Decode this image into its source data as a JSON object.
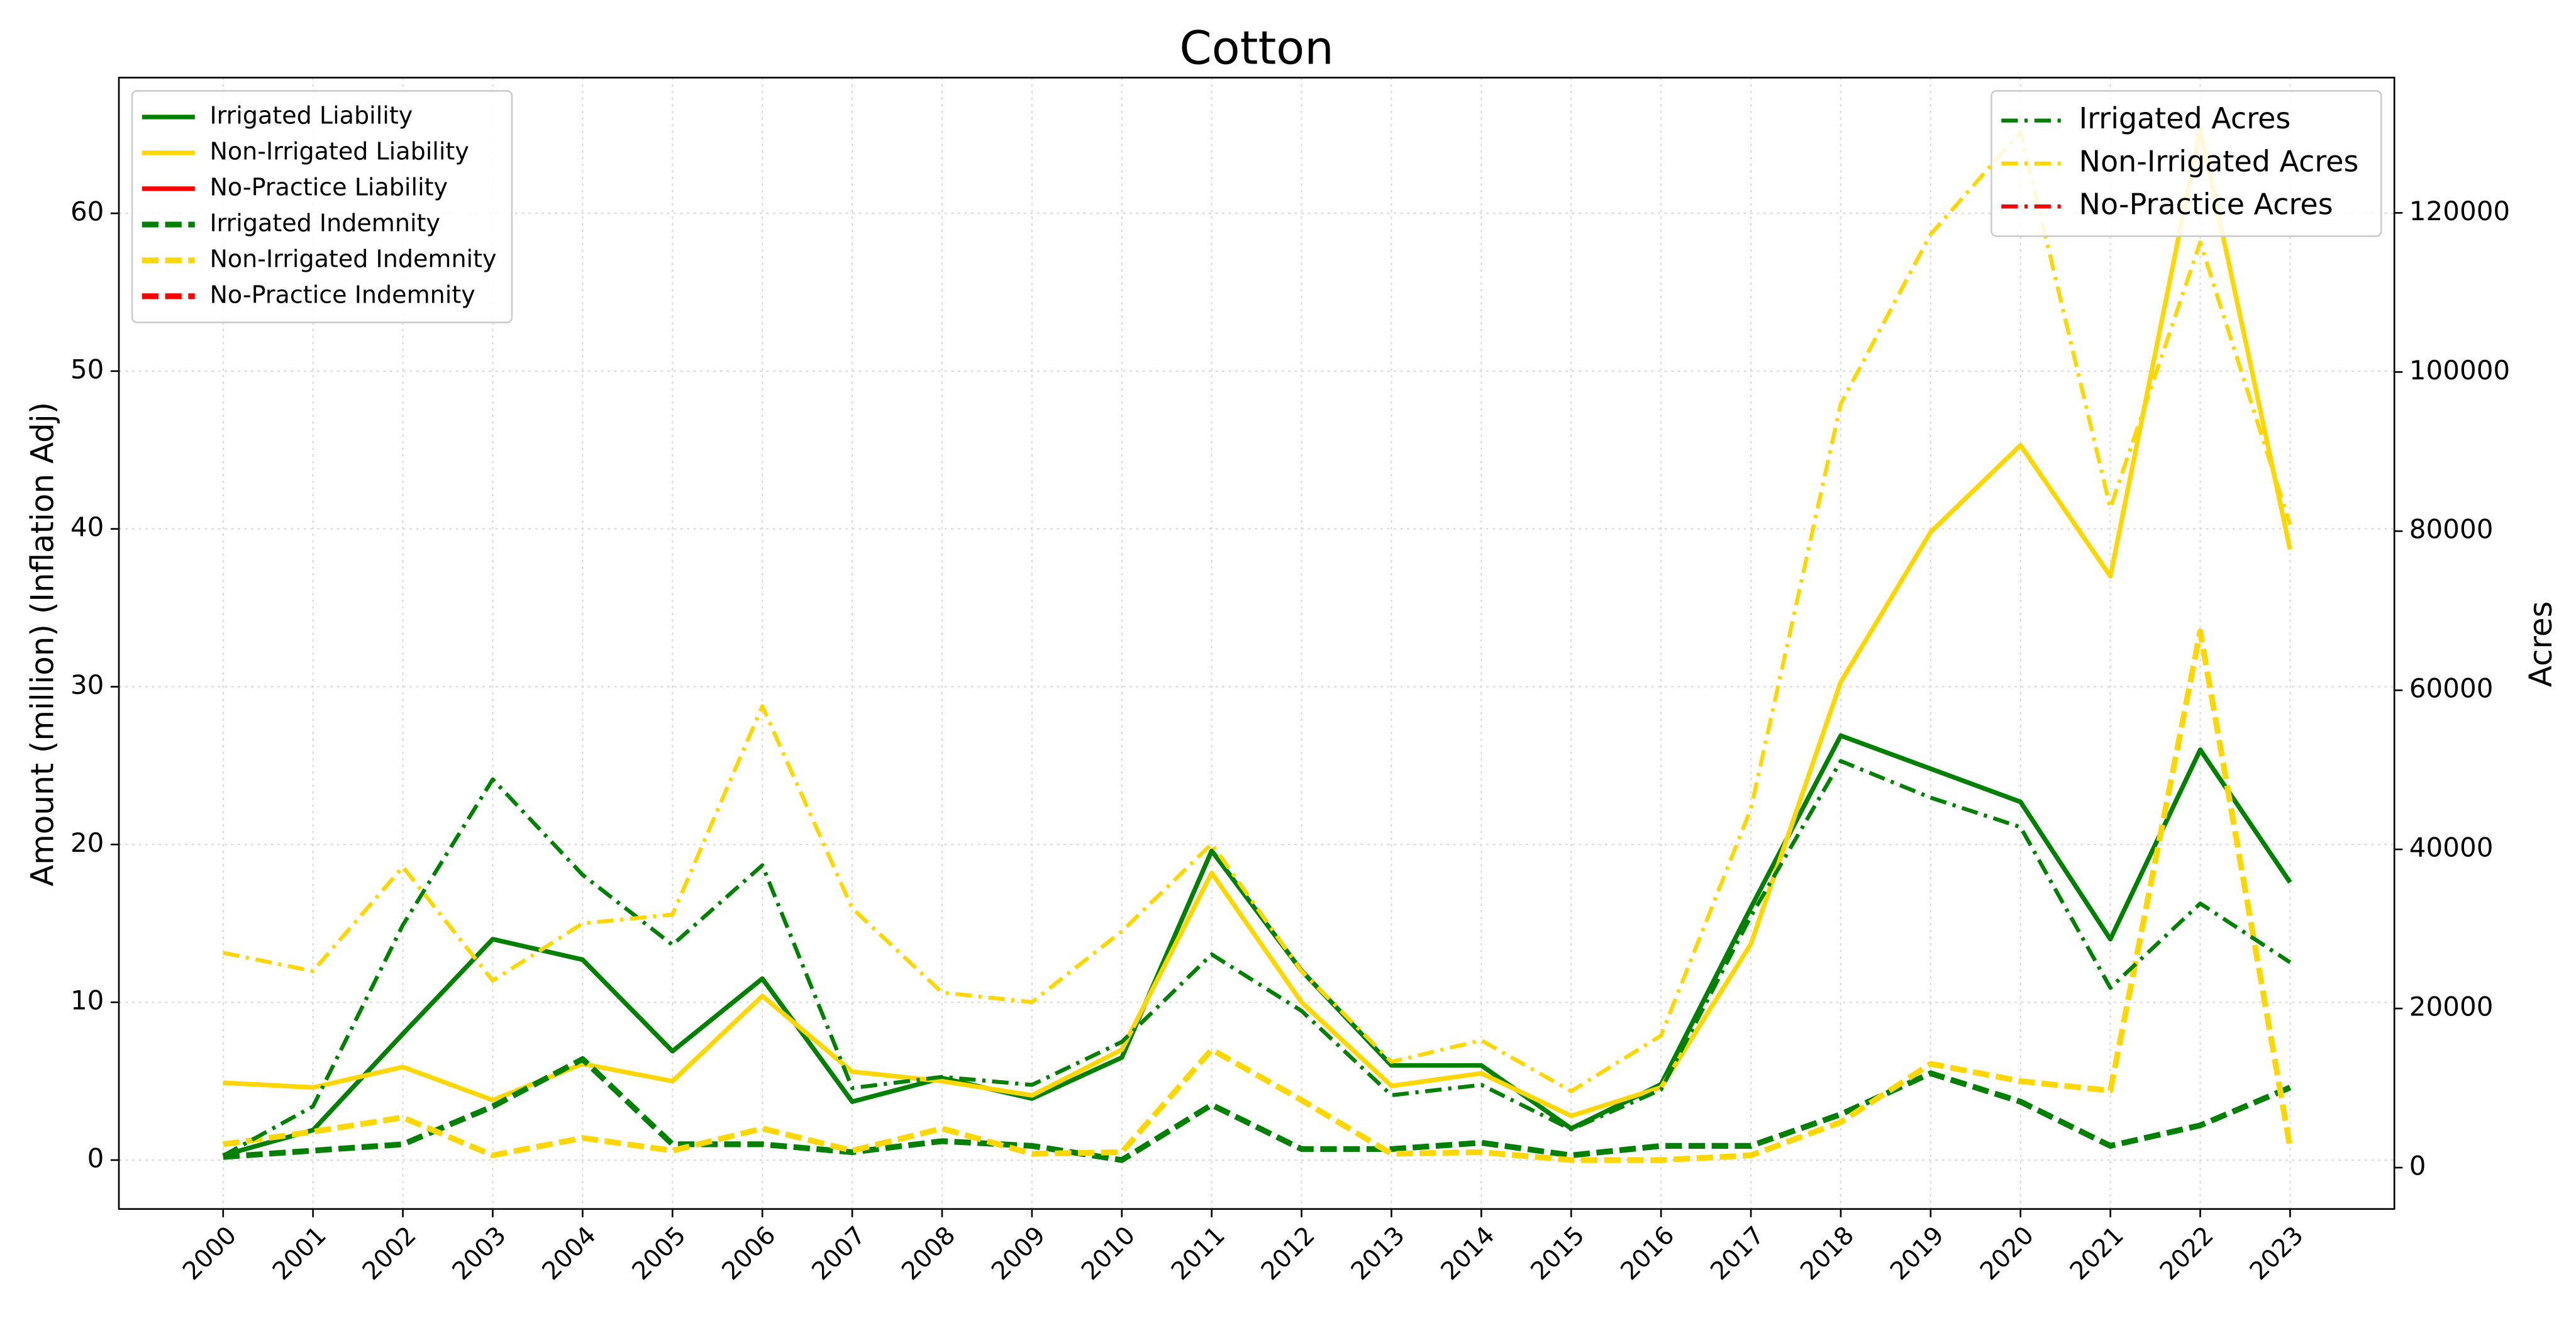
{
  "chart_data": {
    "type": "line",
    "title": "Cotton",
    "ylabel": "Amount (million) (Inflation Adj)",
    "y2label": "Acres",
    "x": [
      2000,
      2001,
      2002,
      2003,
      2004,
      2005,
      2006,
      2007,
      2008,
      2009,
      2010,
      2011,
      2012,
      2013,
      2014,
      2015,
      2016,
      2017,
      2018,
      2019,
      2020,
      2021,
      2022,
      2023
    ],
    "xticks": [
      2000,
      2001,
      2002,
      2003,
      2004,
      2005,
      2006,
      2007,
      2008,
      2009,
      2010,
      2011,
      2012,
      2013,
      2014,
      2015,
      2016,
      2017,
      2018,
      2019,
      2020,
      2021,
      2022,
      2023
    ],
    "xlim": [
      1998.84,
      2024.16
    ],
    "ylim": [
      -3.1,
      68.6
    ],
    "yticks": [
      0,
      10,
      20,
      30,
      40,
      50,
      60
    ],
    "y2lim": [
      -5200,
      137000
    ],
    "y2ticks": [
      0,
      20000,
      40000,
      60000,
      80000,
      100000,
      120000
    ],
    "grid": true,
    "legend": "upper left",
    "legend2": "upper right",
    "series": [
      {
        "name": "Irrigated Liability",
        "color": "#008000",
        "style": "solid",
        "values": [
          0.3,
          1.9,
          8.0,
          14.0,
          12.7,
          6.9,
          11.5,
          3.7,
          5.2,
          3.9,
          6.5,
          19.6,
          12.0,
          6.0,
          6.0,
          2.0,
          4.8,
          16.0,
          26.9,
          24.8,
          22.7,
          14.0,
          26.0,
          17.6
        ]
      },
      {
        "name": "Non-Irrigated Liability",
        "color": "#ffd700",
        "style": "solid",
        "values": [
          4.9,
          4.6,
          5.9,
          3.8,
          6.1,
          5.0,
          10.4,
          5.6,
          5.0,
          4.1,
          7.0,
          18.2,
          10.0,
          4.7,
          5.5,
          2.8,
          4.6,
          13.7,
          30.3,
          39.8,
          45.3,
          37.0,
          65.3,
          38.7
        ]
      },
      {
        "name": "No-Practice Liability",
        "color": "#ff0000",
        "style": "solid",
        "values": [
          null,
          null,
          null,
          null,
          null,
          null,
          null,
          null,
          null,
          null,
          null,
          null,
          null,
          null,
          null,
          null,
          null,
          null,
          null,
          null,
          null,
          null,
          null,
          null
        ]
      },
      {
        "name": "Irrigated Indemnity",
        "color": "#008000",
        "style": "dashed",
        "values": [
          0.2,
          0.6,
          1.0,
          3.4,
          6.4,
          1.0,
          1.0,
          0.5,
          1.2,
          0.9,
          0.0,
          3.5,
          0.7,
          0.7,
          1.1,
          0.3,
          0.9,
          0.9,
          2.9,
          5.5,
          3.7,
          0.9,
          2.2,
          4.6
        ]
      },
      {
        "name": "Non-Irrigated Indemnity",
        "color": "#ffd700",
        "style": "dashed",
        "values": [
          1.0,
          1.8,
          2.7,
          0.3,
          1.4,
          0.6,
          2.0,
          0.6,
          2.0,
          0.4,
          0.5,
          7.0,
          3.8,
          0.4,
          0.5,
          0.0,
          0.0,
          0.3,
          2.4,
          6.1,
          5.0,
          4.4,
          33.5,
          0.8
        ]
      },
      {
        "name": "No-Practice Indemnity",
        "color": "#ff0000",
        "style": "dashed",
        "values": [
          null,
          null,
          null,
          null,
          null,
          null,
          null,
          null,
          null,
          null,
          null,
          null,
          null,
          null,
          null,
          null,
          null,
          null,
          null,
          null,
          null,
          null,
          null,
          null
        ]
      },
      {
        "name": "Irrigated Acres",
        "color": "#008000",
        "style": "dashdot",
        "axis": "y2",
        "values": [
          1500,
          7700,
          30500,
          48800,
          36800,
          28000,
          38000,
          10000,
          11400,
          10400,
          15800,
          26800,
          19700,
          9100,
          10400,
          4800,
          9800,
          31600,
          51100,
          46500,
          42800,
          22600,
          33200,
          25800
        ]
      },
      {
        "name": "Non-Irrigated Acres",
        "color": "#ffd700",
        "style": "dashdot",
        "axis": "y2",
        "values": [
          27000,
          24700,
          37800,
          23500,
          30700,
          31800,
          58000,
          32600,
          22000,
          20800,
          29700,
          40700,
          24700,
          13300,
          16000,
          9600,
          16600,
          45100,
          96000,
          117300,
          130200,
          82900,
          116300,
          80800
        ]
      },
      {
        "name": "No-Practice Acres",
        "color": "#ff0000",
        "style": "dashdot",
        "axis": "y2",
        "values": [
          null,
          null,
          null,
          null,
          null,
          null,
          null,
          null,
          null,
          null,
          null,
          null,
          null,
          null,
          null,
          null,
          null,
          null,
          null,
          null,
          null,
          null,
          null,
          null
        ]
      }
    ]
  }
}
